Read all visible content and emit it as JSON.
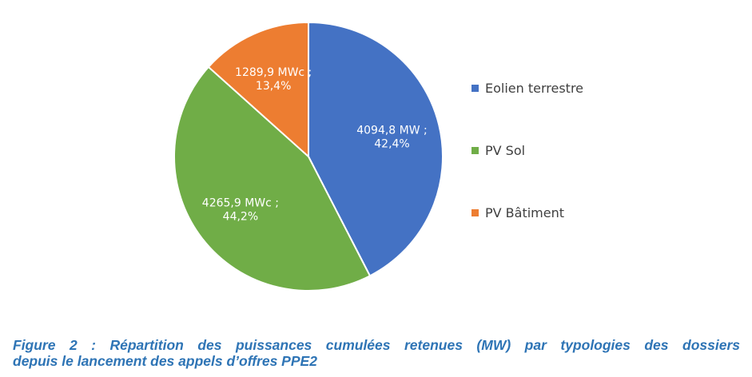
{
  "chart_data": {
    "type": "pie",
    "slices": [
      {
        "name": "Eolien terrestre",
        "value": 4094.8,
        "percent": 42.4,
        "label_line1": "4094,8 MW ;",
        "label_line2": "42,4%",
        "color": "#4472c4"
      },
      {
        "name": "PV Sol",
        "value": 4265.9,
        "percent": 44.2,
        "label_line1": "4265,9 MWc ;",
        "label_line2": "44,2%",
        "color": "#70ad47"
      },
      {
        "name": "PV Bâtiment",
        "value": 1289.9,
        "percent": 13.4,
        "label_line1": "1289,9 MWc ;",
        "label_line2": "13,4%",
        "color": "#ed7d31"
      }
    ],
    "legend_position": "right"
  },
  "caption": {
    "line1": "Figure 2 : Répartition des puissances cumulées retenues (MW) par typologies des dossiers",
    "line2": "depuis le lancement des appels d’offres PPE2"
  }
}
